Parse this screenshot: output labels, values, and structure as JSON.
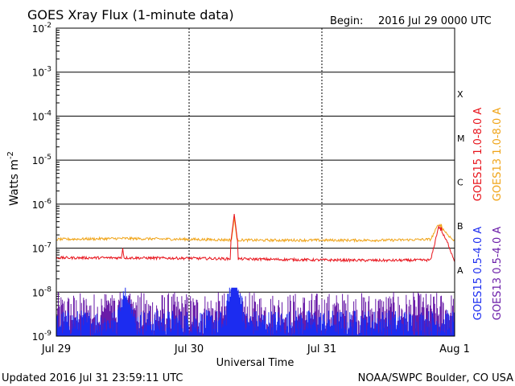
{
  "chart_data": {
    "type": "line",
    "title": "GOES Xray Flux (1-minute data)",
    "begin_label": "Begin:",
    "begin_value": "2016 Jul 29 0000 UTC",
    "xlabel": "Universal Time",
    "ylabel": "Watts m",
    "ylabel_superscript": "-2",
    "y_scale": "log",
    "ylim": [
      1e-09,
      0.01
    ],
    "xlim_days": [
      0,
      3
    ],
    "grid": true,
    "x_ticks": [
      {
        "day": 0,
        "label": "Jul 29"
      },
      {
        "day": 1,
        "label": "Jul 30"
      },
      {
        "day": 2,
        "label": "Jul 31"
      },
      {
        "day": 3,
        "label": "Aug 1"
      }
    ],
    "y_ticks": [
      {
        "exp": -2,
        "label_base": "10",
        "label_exp": "-2"
      },
      {
        "exp": -3,
        "label_base": "10",
        "label_exp": "-3"
      },
      {
        "exp": -4,
        "label_base": "10",
        "label_exp": "-4"
      },
      {
        "exp": -5,
        "label_base": "10",
        "label_exp": "-5"
      },
      {
        "exp": -6,
        "label_base": "10",
        "label_exp": "-6"
      },
      {
        "exp": -7,
        "label_base": "10",
        "label_exp": "-7"
      },
      {
        "exp": -8,
        "label_base": "10",
        "label_exp": "-8"
      },
      {
        "exp": -9,
        "label_base": "10",
        "label_exp": "-9"
      }
    ],
    "flare_classes": [
      {
        "label": "X",
        "exp": -3.5
      },
      {
        "label": "M",
        "exp": -4.5
      },
      {
        "label": "C",
        "exp": -5.5
      },
      {
        "label": "B",
        "exp": -6.5
      },
      {
        "label": "A",
        "exp": -7.5
      }
    ],
    "series": [
      {
        "name": "GOES15 1.0-8.0 A",
        "color": "#e8141c",
        "baseline_log": [
          [
            0,
            -7.22
          ],
          [
            0.5,
            -7.22
          ],
          [
            1.0,
            -7.23
          ],
          [
            1.5,
            -7.25
          ],
          [
            2.0,
            -7.27
          ],
          [
            2.5,
            -7.28
          ],
          [
            2.82,
            -7.27
          ],
          [
            2.88,
            -6.5
          ],
          [
            2.95,
            -6.9
          ],
          [
            3.0,
            -7.3
          ]
        ],
        "peaks": [
          {
            "x": 0.5,
            "y": 1e-07
          },
          {
            "x": 1.34,
            "y": 6e-07
          },
          {
            "x": 2.9,
            "y": 3e-07
          }
        ]
      },
      {
        "name": "GOES13 1.0-8.0 A",
        "color": "#f0a418",
        "baseline_log": [
          [
            0,
            -6.8
          ],
          [
            0.5,
            -6.78
          ],
          [
            1.0,
            -6.8
          ],
          [
            1.5,
            -6.82
          ],
          [
            2.0,
            -6.82
          ],
          [
            2.5,
            -6.82
          ],
          [
            2.82,
            -6.8
          ],
          [
            2.88,
            -6.45
          ],
          [
            2.95,
            -6.7
          ],
          [
            3.0,
            -6.85
          ]
        ],
        "peaks": [
          {
            "x": 1.34,
            "y": 5e-07
          },
          {
            "x": 2.9,
            "y": 3.5e-07
          }
        ]
      },
      {
        "name": "GOES15 0.5-4.0 A",
        "color": "#1c2cf0",
        "baseline_log": [
          [
            0,
            -9.0
          ],
          [
            3.0,
            -9.0
          ]
        ],
        "peaks": [
          {
            "x": 0.52,
            "y": 1.5e-08
          },
          {
            "x": 1.34,
            "y": 3e-08
          }
        ]
      },
      {
        "name": "GOES13 0.5-4.0 A",
        "color": "#6a1ca8",
        "baseline_log": [
          [
            0,
            -9.0
          ],
          [
            3.0,
            -9.0
          ]
        ],
        "peaks": [
          {
            "x": 0.38,
            "y": 1e-08
          },
          {
            "x": 0.55,
            "y": 1.2e-08
          }
        ]
      }
    ]
  },
  "footer": {
    "updated": "Updated 2016 Jul 31 23:59:11 UTC",
    "credit": "NOAA/SWPC Boulder, CO USA"
  }
}
